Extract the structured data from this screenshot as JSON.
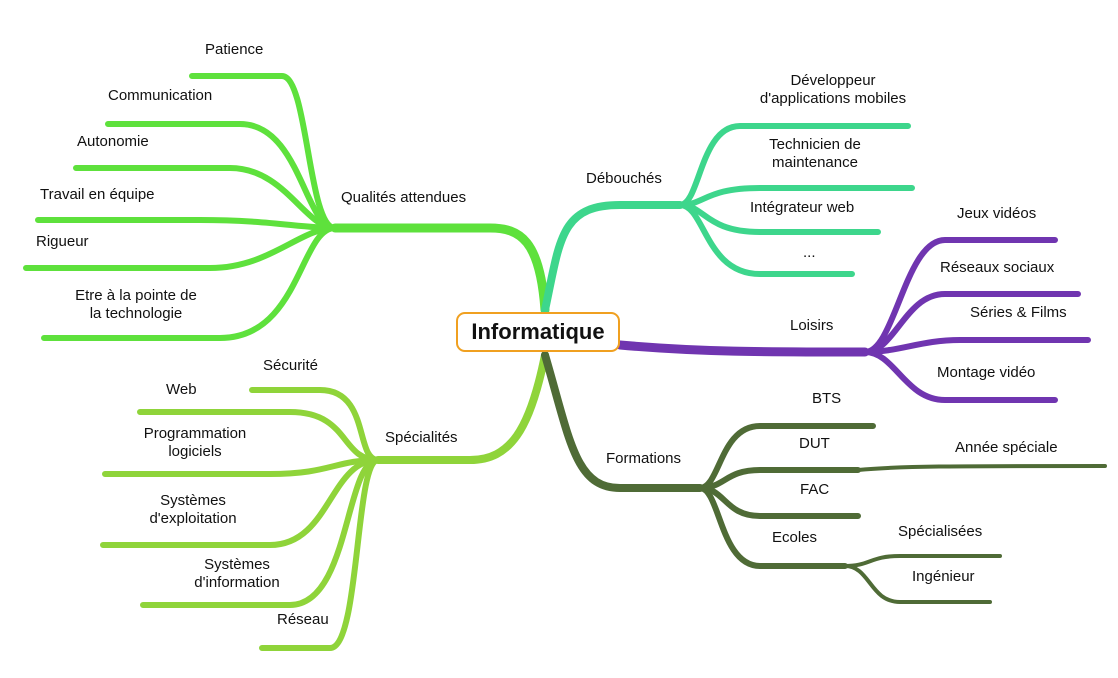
{
  "center": "Informatique",
  "colors": {
    "qualites": "#5ee13c",
    "specialites": "#8fd43a",
    "debouches": "#3dd68c",
    "loisirs": "#7035b0",
    "formations": "#4f6b36",
    "center_border": "#f0a020"
  },
  "qualites": {
    "title": "Qualités attendues",
    "items": [
      "Patience",
      "Communication",
      "Autonomie",
      "Travail en équipe",
      "Rigueur",
      [
        "Etre à la pointe de",
        "la technologie"
      ]
    ]
  },
  "specialites": {
    "title": "Spécialités",
    "items": [
      "Sécurité",
      "Web",
      [
        "Programmation",
        "logiciels"
      ],
      [
        "Systèmes",
        "d'exploitation"
      ],
      [
        "Systèmes",
        "d'information"
      ],
      "Réseau"
    ]
  },
  "debouches": {
    "title": "Débouchés",
    "items": [
      [
        "Développeur",
        "d'applications  mobiles"
      ],
      [
        "Technicien  de",
        "maintenance"
      ],
      "Intégrateur web",
      "..."
    ]
  },
  "loisirs": {
    "title": "Loisirs",
    "items": [
      "Jeux vidéos",
      "Réseaux sociaux",
      "Séries & Films",
      "Montage vidéo"
    ]
  },
  "formations": {
    "title": "Formations",
    "items": [
      "BTS",
      "DUT",
      "FAC",
      "Ecoles"
    ],
    "dut_sub": "Année spéciale",
    "ecoles_sub": [
      "Spécialisées",
      "Ingénieur"
    ]
  }
}
